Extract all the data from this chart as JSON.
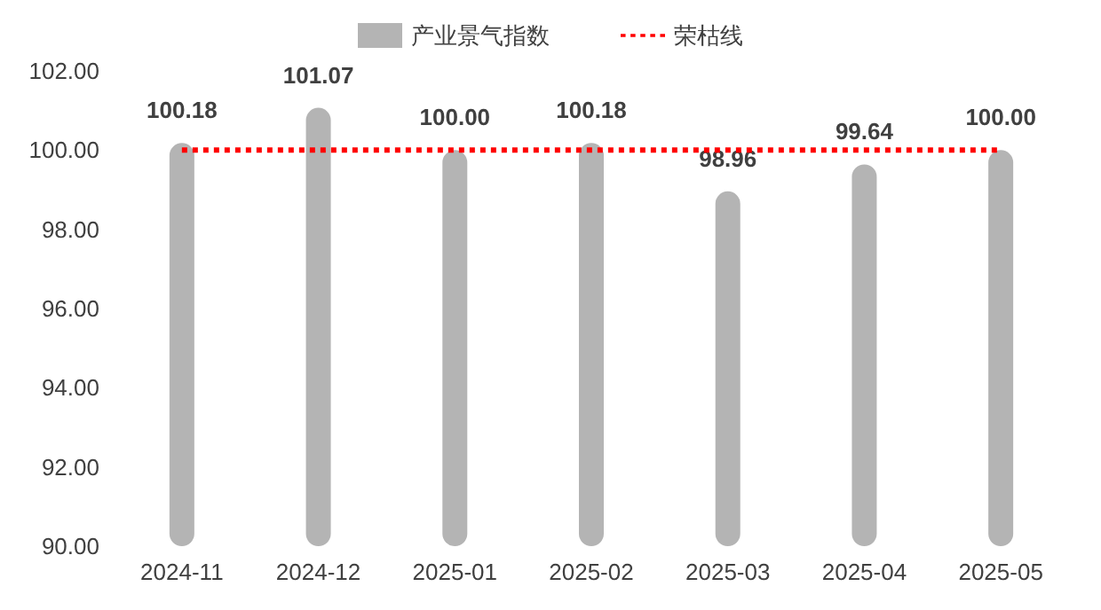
{
  "chart_data": {
    "type": "bar",
    "categories": [
      "2024-11",
      "2024-12",
      "2025-01",
      "2025-02",
      "2025-03",
      "2025-04",
      "2025-05"
    ],
    "series": [
      {
        "name": "产业景气指数",
        "color": "#b4b4b4",
        "values": [
          100.18,
          101.07,
          100.0,
          100.18,
          98.96,
          99.64,
          100.0
        ],
        "value_labels": [
          "100.18",
          "101.07",
          "100.00",
          "100.18",
          "98.96",
          "99.64",
          "100.00"
        ]
      },
      {
        "name": "荣枯线",
        "type": "line",
        "color": "#ff0000",
        "values": [
          100,
          100,
          100,
          100,
          100,
          100,
          100
        ],
        "line_style": "dotted",
        "marker": "none"
      }
    ],
    "ylim": [
      90,
      102
    ],
    "yticks": [
      {
        "value": 90,
        "label": "90.00"
      },
      {
        "value": 92,
        "label": "92.00"
      },
      {
        "value": 94,
        "label": "94.00"
      },
      {
        "value": 96,
        "label": "96.00"
      },
      {
        "value": 98,
        "label": "98.00"
      },
      {
        "value": 100,
        "label": "100.00"
      },
      {
        "value": 102,
        "label": "102.00"
      }
    ],
    "legend": "top",
    "grid": false
  }
}
